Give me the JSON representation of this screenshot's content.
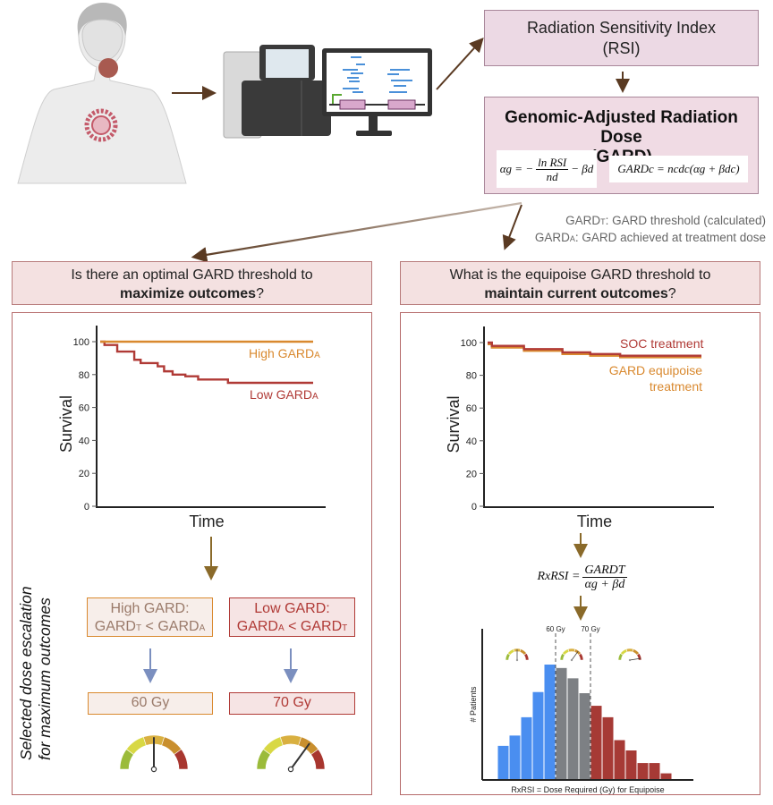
{
  "top": {
    "rsi_box": {
      "line1": "Radiation Sensitivity Index",
      "line2": "(RSI)"
    },
    "gard_box": {
      "title_line1": "Genomic-Adjusted Radiation Dose",
      "title_line2": "(GARD)",
      "eq1": {
        "lhs": "αg = −",
        "num": "ln RSI",
        "den": "nd",
        "rhs": "− βd"
      },
      "eq2": "GARDc = ncdc(αg + βdc)"
    },
    "legend": {
      "line1_prefix": "GARD",
      "line1_sub": "T",
      "line1_text": ": GARD threshold (calculated)",
      "line2_prefix": "GARD",
      "line2_sub": "A",
      "line2_text": ": GARD achieved at treatment dose"
    }
  },
  "left": {
    "question_line1": "Is there an optimal GARD threshold to",
    "question_bold": "maximize outcomes",
    "question_end": "?",
    "side_label_line1": "Selected dose escalation",
    "side_label_line2": "for maximum outcomes",
    "high_box": {
      "line1": "High GARD:",
      "line2a": "GARD",
      "line2a_sub": "T",
      "line2b": " < GARD",
      "line2b_sub": "A"
    },
    "low_box": {
      "line1": "Low GARD:",
      "line2a": "GARD",
      "line2a_sub": "A",
      "line2b": " < GARD",
      "line2b_sub": "T"
    },
    "high_dose": "60 Gy",
    "low_dose": "70 Gy",
    "gauges": [
      {
        "name": "gauge-60gy",
        "level": 0.5
      },
      {
        "name": "gauge-70gy",
        "level": 0.7
      }
    ]
  },
  "right": {
    "question_line1": "What is the equipoise GARD threshold to",
    "question_bold": "maintain current outcomes",
    "question_end": "?",
    "rxrsi_eq": {
      "lhs": "RxRSI =",
      "num": "GARDT",
      "den": "αg + βd"
    }
  },
  "colors": {
    "high_gard": "#d9892f",
    "low_gard": "#b03a36",
    "soc": "#b03a36",
    "equipoise": "#d9892f",
    "blue_bar": "#4a8ef0",
    "gray_bar": "#7d8084",
    "red_bar": "#a63a35",
    "box_pink": "#f4e1e1",
    "box_border": "#b56a6a"
  },
  "chart_data": [
    {
      "type": "line",
      "title": "",
      "xlabel": "Time",
      "ylabel": "Survival",
      "ylim": [
        0,
        100
      ],
      "yticks": [
        0,
        20,
        40,
        60,
        80,
        100
      ],
      "xlim": [
        0,
        100
      ],
      "series": [
        {
          "name": "High GARDA",
          "label_main": "High GARD",
          "label_sub": "A",
          "step": true,
          "x": [
            0,
            100
          ],
          "y": [
            100,
            100
          ]
        },
        {
          "name": "Low GARDA",
          "label_main": "Low GARD",
          "label_sub": "A",
          "step": true,
          "x": [
            0,
            2,
            8,
            16,
            19,
            27,
            30,
            34,
            40,
            46,
            60,
            100
          ],
          "y": [
            100,
            98,
            94,
            89,
            87,
            85,
            82,
            80,
            79,
            77,
            75,
            75
          ]
        }
      ]
    },
    {
      "type": "line",
      "title": "",
      "xlabel": "Time",
      "ylabel": "Survival",
      "ylim": [
        0,
        100
      ],
      "yticks": [
        0,
        20,
        40,
        60,
        80,
        100
      ],
      "xlim": [
        0,
        100
      ],
      "series": [
        {
          "name": "SOC treatment",
          "step": true,
          "x": [
            0,
            2,
            17,
            35,
            48,
            62,
            100
          ],
          "y": [
            100,
            98,
            96,
            94,
            93,
            92,
            92
          ]
        },
        {
          "name": "GARD equipoise treatment",
          "label_line1": "GARD equipoise",
          "label_line2": "treatment",
          "step": true,
          "x": [
            0,
            2,
            17,
            35,
            48,
            62,
            100
          ],
          "y": [
            99,
            97,
            95,
            93,
            92,
            91,
            91
          ]
        }
      ]
    },
    {
      "type": "bar",
      "title": "",
      "xlabel": "RxRSI = Dose Required (Gy) for Equipoise",
      "ylabel": "# Patients",
      "thresholds": [
        "60 Gy",
        "70 Gy"
      ],
      "values": [
        29,
        38,
        54,
        76,
        100,
        97,
        88,
        75,
        64,
        54,
        34,
        25,
        14,
        14,
        5
      ],
      "groups": [
        "blue",
        "blue",
        "blue",
        "blue",
        "blue",
        "gray",
        "gray",
        "gray",
        "red",
        "red",
        "red",
        "red",
        "red",
        "red",
        "red"
      ],
      "zone_gauges": [
        0.5,
        0.7,
        0.95
      ]
    }
  ]
}
